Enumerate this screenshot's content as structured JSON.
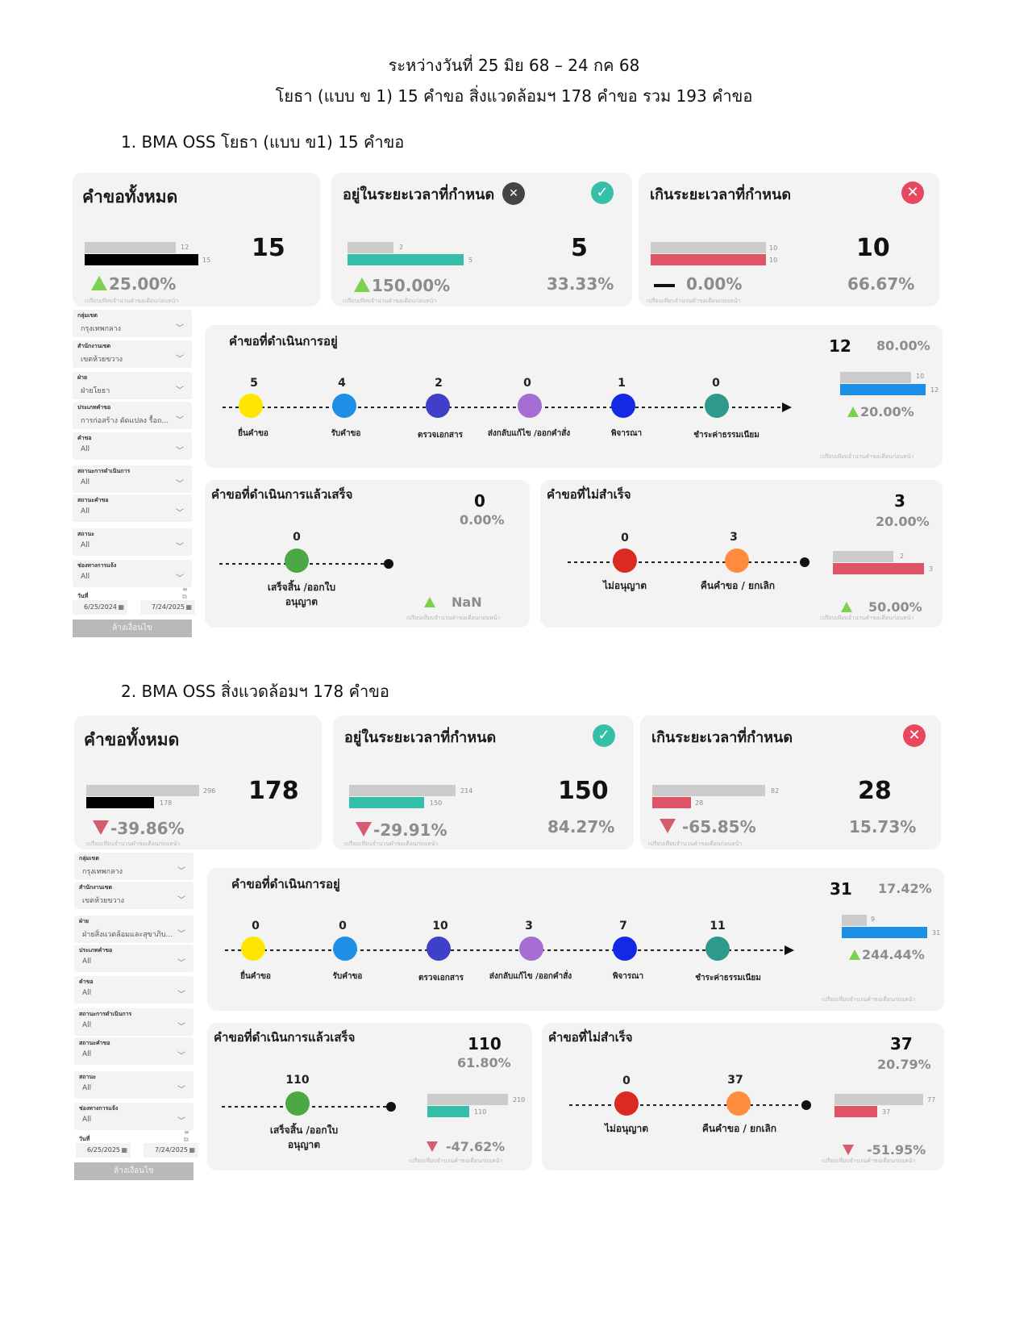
{
  "header": {
    "line1": "ระหว่างวันที่ 25 มิย 68 – 24 กค 68",
    "line2": "โยธา (แบบ ข 1) 15 คำขอ  สิ่งแวดล้อมฯ 178 คำขอ รวม  193 คำขอ"
  },
  "common": {
    "total_title": "คำขอทั้งหมด",
    "ontime_title": "อยู่ในระยะเวลาที่กำหนด",
    "overdue_title": "เกินระยะเวลาที่กำหนด",
    "in_progress_title": "คำขอที่ดำเนินการอยู่",
    "done_title": "คำขอที่ดำเนินการแล้วเสร็จ",
    "failed_title": "คำขอที่ไม่สำเร็จ",
    "compare_note": "เปรียบเทียบจำนวนคำขอเดือนก่อนหน้า",
    "clear_button": "ล้างเงื่อนไข",
    "steps": [
      "ยื่นคำขอ",
      "รับคำขอ",
      "ตรวจเอกสาร",
      "ส่งกลับแก้ไข /ออกคำสั่ง",
      "พิจารณา",
      "ชำระค่าธรรมเนียม"
    ],
    "done_step": "เสร็จสิ้น /ออกใบอนุญาต",
    "fail_steps": [
      "ไม่อนุญาต",
      "คืนคำขอ / ยกเลิก"
    ],
    "filter_labels": [
      "กลุ่มเขต",
      "สำนักงานเขต",
      "ฝ่าย",
      "ประเภทคำขอ",
      "คำขอ",
      "สถานะการดำเนินการ",
      "สถานะคำขอ",
      "สถานะ",
      "ช่องทางการแจ้ง"
    ],
    "date_label": "วันที่",
    "colors": {
      "steps": [
        "#ffe600",
        "#1e8fe6",
        "#3f3fc8",
        "#a66ed4",
        "#1229e6",
        "#2e9a8c"
      ],
      "done": "#4aa845",
      "fail": [
        "#dc2a23",
        "#ff8c3c"
      ],
      "teal": "#36bfa8",
      "red": "#e05468",
      "blue": "#1e8fe6",
      "gray": "#cccccc"
    }
  },
  "sections": [
    {
      "title": "1. BMA OSS โยธา (แบบ ข1) 15 คำขอ",
      "total": {
        "value": "15",
        "prev": "12",
        "curr": "15",
        "change": "25.00%",
        "dir": "up"
      },
      "ontime": {
        "value": "5",
        "pct": "33.33%",
        "prev": "2",
        "curr": "5",
        "change": "150.00%",
        "dir": "up"
      },
      "overdue": {
        "value": "10",
        "pct": "66.67%",
        "prev": "10",
        "curr": "10",
        "change": "0.00%",
        "dir": "flat"
      },
      "in_progress": {
        "value": "12",
        "pct": "80.00%",
        "prev": "10",
        "curr": "12",
        "change": "20.00%",
        "dir": "up",
        "counts": [
          "5",
          "4",
          "2",
          "0",
          "1",
          "0"
        ]
      },
      "done": {
        "value": "0",
        "pct": "0.00%",
        "count": "0",
        "change": "NaN",
        "dir": "up"
      },
      "failed": {
        "value": "3",
        "pct": "20.00%",
        "prev": "2",
        "curr": "3",
        "change": "50.00%",
        "dir": "up",
        "counts": [
          "0",
          "3"
        ]
      },
      "filters": [
        "กรุงเทพกลาง",
        "เขตห้วยขวาง",
        "ฝ่ายโยธา",
        "การก่อสร้าง ดัดแปลง รื้อถ...",
        "All",
        "All",
        "All",
        "All",
        "All"
      ],
      "date_from": "6/25/2024",
      "date_to": "7/24/2025"
    },
    {
      "title": "2. BMA OSS สิ่งแวดล้อมฯ 178 คำขอ",
      "total": {
        "value": "178",
        "prev": "296",
        "curr": "178",
        "change": "-39.86%",
        "dir": "down"
      },
      "ontime": {
        "value": "150",
        "pct": "84.27%",
        "prev": "214",
        "curr": "150",
        "change": "-29.91%",
        "dir": "down"
      },
      "overdue": {
        "value": "28",
        "pct": "15.73%",
        "prev": "82",
        "curr": "28",
        "change": "-65.85%",
        "dir": "down"
      },
      "in_progress": {
        "value": "31",
        "pct": "17.42%",
        "prev": "9",
        "curr": "31",
        "change": "244.44%",
        "dir": "up",
        "counts": [
          "0",
          "0",
          "10",
          "3",
          "7",
          "11"
        ]
      },
      "done": {
        "value": "110",
        "pct": "61.80%",
        "count": "110",
        "prev": "210",
        "curr": "110",
        "change": "-47.62%",
        "dir": "down"
      },
      "failed": {
        "value": "37",
        "pct": "20.79%",
        "prev": "77",
        "curr": "37",
        "change": "-51.95%",
        "dir": "down",
        "counts": [
          "0",
          "37"
        ]
      },
      "filters": [
        "กรุงเทพกลาง",
        "เขตห้วยขวาง",
        "ฝ่ายสิ่งแวดล้อมและสุขาภิบ...",
        "All",
        "All",
        "All",
        "All",
        "All",
        "All"
      ],
      "date_from": "6/25/2025",
      "date_to": "7/24/2025"
    }
  ]
}
